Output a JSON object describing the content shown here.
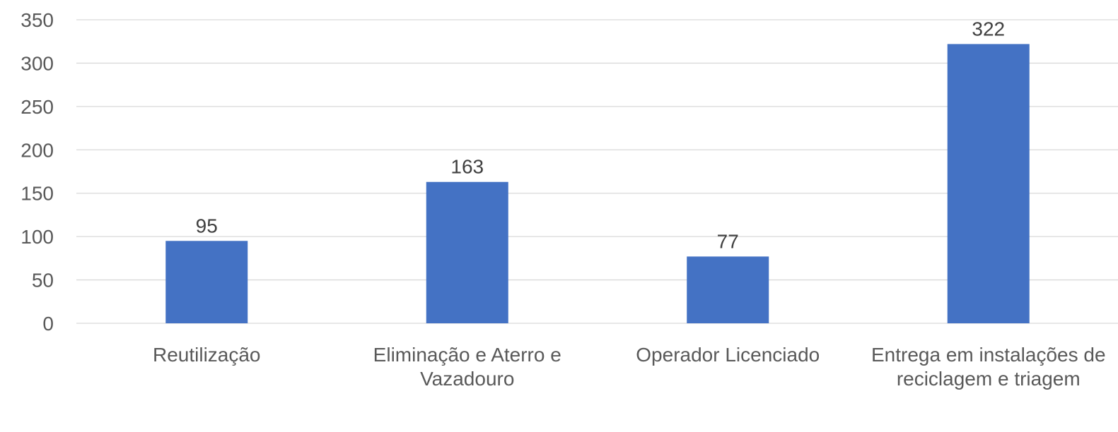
{
  "chart_data": {
    "type": "bar",
    "categories": [
      "Reutilização",
      "Eliminação e Aterro e Vazadouro",
      "Operador Licenciado",
      "Entrega em instalações de reciclagem e triagem"
    ],
    "values": [
      95,
      163,
      77,
      322
    ],
    "color": "#4472c4",
    "ylim": [
      0,
      350
    ],
    "yticks": [
      0,
      50,
      100,
      150,
      200,
      250,
      300,
      350
    ],
    "grid": true
  }
}
